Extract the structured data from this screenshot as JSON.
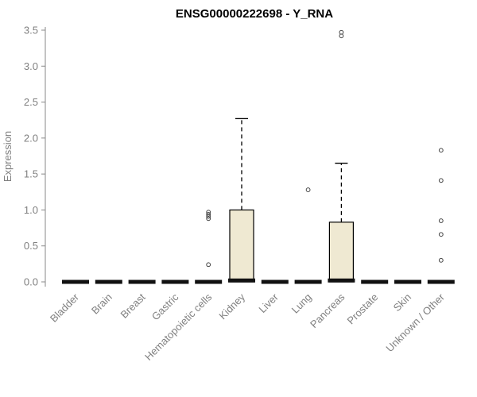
{
  "title": "ENSG00000222698 - Y_RNA",
  "chart_data": {
    "type": "boxplot",
    "title": "ENSG00000222698 - Y_RNA",
    "xlabel": "",
    "ylabel": "Expression",
    "ylim": [
      0,
      3.5
    ],
    "yticks": [
      0.0,
      0.5,
      1.0,
      1.5,
      2.0,
      2.5,
      3.0,
      3.5
    ],
    "grid": false,
    "legend": false,
    "box_fill": "#EFE9D2",
    "box_stroke": "#000000",
    "axis_color": "#888888",
    "categories": [
      "Bladder",
      "Brain",
      "Breast",
      "Gastric",
      "Hematopoietic cells",
      "Kidney",
      "Liver",
      "Lung",
      "Pancreas",
      "Prostate",
      "Skin",
      "Unknown / Other"
    ],
    "boxes": [
      {
        "category": "Bladder",
        "min": 0,
        "q1": 0,
        "median": 0,
        "q3": 0,
        "max": 0,
        "outliers": []
      },
      {
        "category": "Brain",
        "min": 0,
        "q1": 0,
        "median": 0,
        "q3": 0,
        "max": 0,
        "outliers": []
      },
      {
        "category": "Breast",
        "min": 0,
        "q1": 0,
        "median": 0,
        "q3": 0,
        "max": 0,
        "outliers": []
      },
      {
        "category": "Gastric",
        "min": 0,
        "q1": 0,
        "median": 0,
        "q3": 0,
        "max": 0,
        "outliers": []
      },
      {
        "category": "Hematopoietic cells",
        "min": 0,
        "q1": 0,
        "median": 0,
        "q3": 0,
        "max": 0,
        "outliers": [
          0.24,
          0.88,
          0.91,
          0.94,
          0.97
        ]
      },
      {
        "category": "Kidney",
        "min": 0,
        "q1": 0,
        "median": 0.02,
        "q3": 1.0,
        "max": 2.27,
        "outliers": []
      },
      {
        "category": "Liver",
        "min": 0,
        "q1": 0,
        "median": 0,
        "q3": 0,
        "max": 0,
        "outliers": []
      },
      {
        "category": "Lung",
        "min": 0,
        "q1": 0,
        "median": 0,
        "q3": 0,
        "max": 0,
        "outliers": [
          1.28
        ]
      },
      {
        "category": "Pancreas",
        "min": 0,
        "q1": 0,
        "median": 0.02,
        "q3": 0.83,
        "max": 1.65,
        "outliers": [
          3.42,
          3.47
        ]
      },
      {
        "category": "Prostate",
        "min": 0,
        "q1": 0,
        "median": 0,
        "q3": 0,
        "max": 0,
        "outliers": []
      },
      {
        "category": "Skin",
        "min": 0,
        "q1": 0,
        "median": 0,
        "q3": 0,
        "max": 0,
        "outliers": []
      },
      {
        "category": "Unknown / Other",
        "min": 0,
        "q1": 0,
        "median": 0,
        "q3": 0,
        "max": 0,
        "outliers": [
          0.3,
          0.66,
          0.85,
          1.41,
          1.83
        ]
      }
    ]
  }
}
